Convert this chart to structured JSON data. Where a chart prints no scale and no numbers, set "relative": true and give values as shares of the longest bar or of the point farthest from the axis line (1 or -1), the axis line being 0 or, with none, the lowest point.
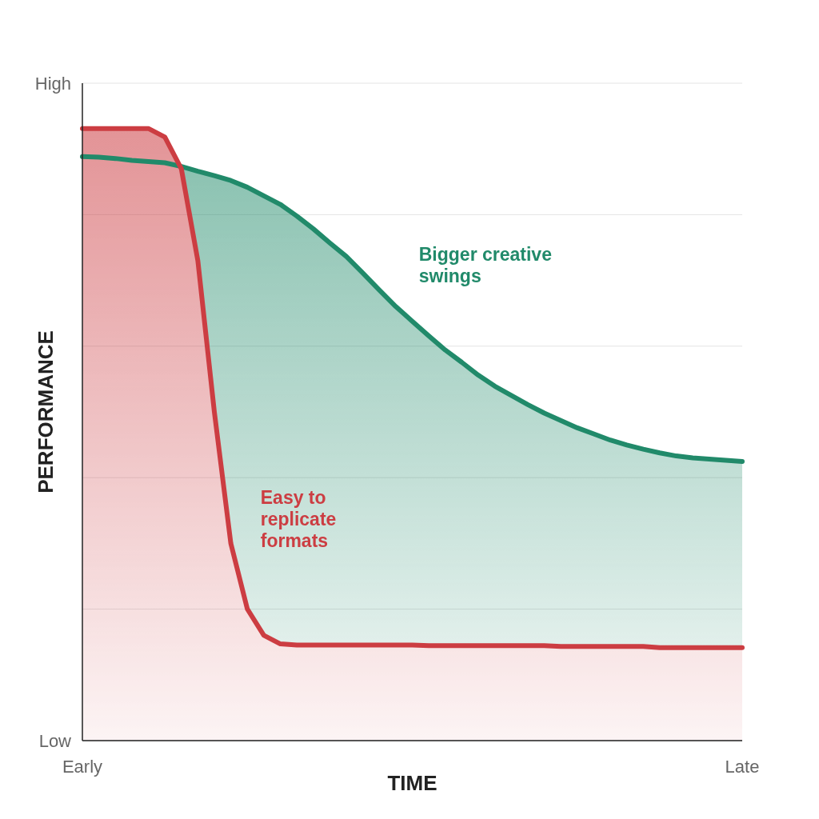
{
  "chart_data": {
    "type": "area",
    "relative": true,
    "xlabel": "TIME",
    "ylabel": "PERFORMANCE",
    "grid": "y",
    "annotations": [
      "High",
      "Low"
    ],
    "categories": [
      "Early",
      null,
      null,
      null,
      null,
      null,
      null,
      null,
      null,
      null,
      null,
      null,
      null,
      null,
      null,
      null,
      null,
      null,
      null,
      null,
      null,
      null,
      null,
      null,
      null,
      null,
      null,
      null,
      null,
      null,
      null,
      null,
      null,
      null,
      null,
      null,
      null,
      null,
      null,
      null,
      "Late"
    ],
    "series": [
      {
        "name": "Bigger creative swings",
        "color": "#218a6a",
        "values": [
          0.954,
          0.953,
          0.951,
          0.948,
          0.946,
          0.944,
          0.938,
          0.93,
          0.923,
          0.915,
          0.904,
          0.89,
          0.876,
          0.857,
          0.836,
          0.813,
          0.791,
          0.764,
          0.736,
          0.709,
          0.685,
          0.661,
          0.638,
          0.618,
          0.597,
          0.579,
          0.564,
          0.549,
          0.535,
          0.523,
          0.511,
          0.501,
          0.491,
          0.483,
          0.476,
          0.47,
          0.465,
          0.462,
          0.46,
          0.458,
          0.456
        ]
      },
      {
        "name": "Easy to replicate formats",
        "color": "#cc3d42",
        "values": [
          1,
          1,
          1,
          1,
          1,
          0.986,
          0.934,
          0.784,
          0.537,
          0.322,
          0.215,
          0.172,
          0.158,
          0.156,
          0.156,
          0.156,
          0.156,
          0.156,
          0.156,
          0.156,
          0.156,
          0.155,
          0.155,
          0.155,
          0.155,
          0.155,
          0.155,
          0.155,
          0.155,
          0.154,
          0.154,
          0.154,
          0.154,
          0.154,
          0.154,
          0.152,
          0.152,
          0.152,
          0.152,
          0.152,
          0.152
        ]
      }
    ]
  }
}
